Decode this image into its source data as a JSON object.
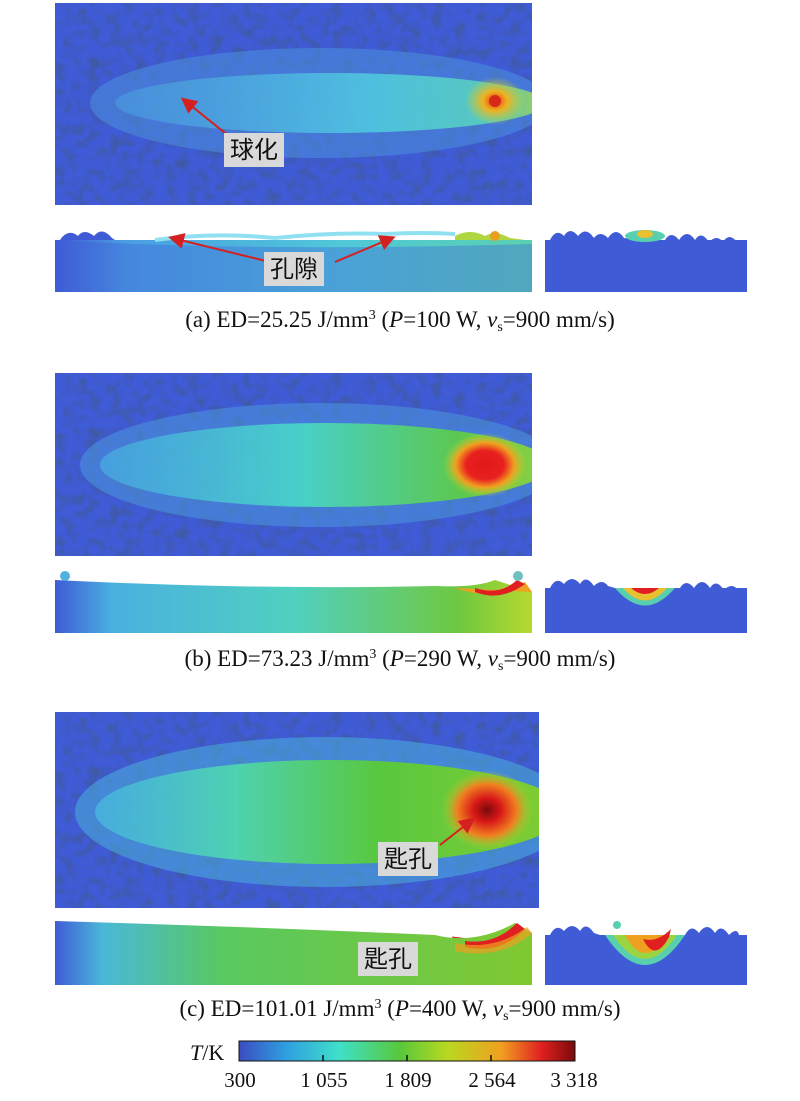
{
  "panels": [
    {
      "id": "a",
      "caption": {
        "prefix": "(a) ED=25.25 J/mm",
        "sup": "3",
        "mid1": " (",
        "P": "P",
        "mid2": "=100 W, ",
        "v": "v",
        "sub": "s",
        "suffix": "=900 mm/s)"
      },
      "annotations": [
        "球化",
        "孔隙"
      ],
      "peak_color": "#f2b81e"
    },
    {
      "id": "b",
      "caption": {
        "prefix": "(b) ED=73.23 J/mm",
        "sup": "3",
        "mid1": " (",
        "P": "P",
        "mid2": "=290 W, ",
        "v": "v",
        "sub": "s",
        "suffix": "=900 mm/s)"
      },
      "annotations": [],
      "peak_color": "#e61d1d"
    },
    {
      "id": "c",
      "caption": {
        "prefix": "(c) ED=101.01 J/mm",
        "sup": "3",
        "mid1": " (",
        "P": "P",
        "mid2": "=400 W, ",
        "v": "v",
        "sub": "s",
        "suffix": "=900 mm/s)"
      },
      "annotations": [
        "匙孔",
        "匙孔"
      ],
      "peak_color": "#d8141a"
    }
  ],
  "colorbar": {
    "title_italic": "T",
    "title_rest": "/K",
    "ticks": [
      "300",
      "1 055",
      "1 809",
      "2 564",
      "3 318"
    ],
    "colors": [
      "#3b4cc0",
      "#2f9fe0",
      "#3fe0c8",
      "#58c83a",
      "#b8d820",
      "#f0a020",
      "#e02020",
      "#7a0a0a"
    ]
  },
  "colors": {
    "substrate": "#3f5bd6",
    "arrow": "#d42020"
  }
}
